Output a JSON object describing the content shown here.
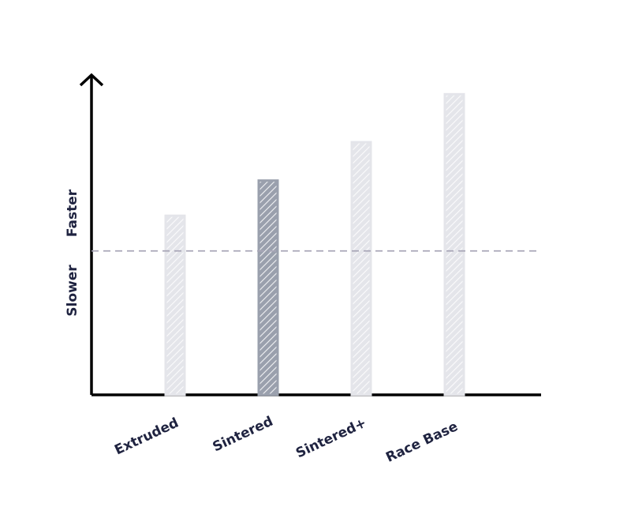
{
  "chart_data": {
    "type": "bar",
    "categories": [
      "Extruded",
      "Sintered",
      "Sintered+",
      "Race Base"
    ],
    "values": [
      56,
      67,
      79,
      94
    ],
    "colors": [
      "#e4e5ea",
      "#9aa0ad",
      "#e4e5ea",
      "#e4e5ea"
    ],
    "ylim": [
      0,
      100
    ],
    "reference_line": {
      "value": 45,
      "color": "#a9a7b8",
      "above_label": "Faster",
      "below_label": "Slower"
    }
  }
}
